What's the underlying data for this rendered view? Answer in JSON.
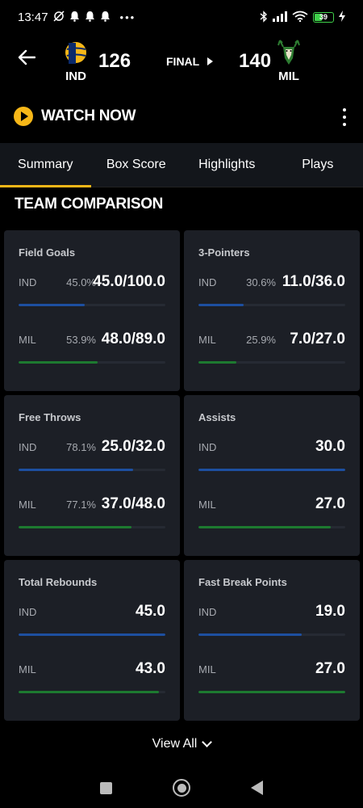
{
  "status_bar": {
    "time": "13:47",
    "left_icons": [
      "alarm-off-icon",
      "bell-icon",
      "bell-icon",
      "bell-icon",
      "more-dots-icon"
    ],
    "right_icons": [
      "bluetooth-icon",
      "signal-icon",
      "wifi-icon"
    ],
    "battery_level": "39",
    "battery_color": "#3fd14a"
  },
  "game": {
    "home_team": "IND",
    "home_score": "126",
    "away_team": "MIL",
    "away_score": "140",
    "status": "FINAL"
  },
  "watch": {
    "label": "WATCH NOW",
    "accent": "#f7b718"
  },
  "tabs": [
    {
      "label": "Summary",
      "active": true
    },
    {
      "label": "Box Score",
      "active": false
    },
    {
      "label": "Highlights",
      "active": false
    },
    {
      "label": "Plays",
      "active": false
    }
  ],
  "section_title": "TEAM COMPARISON",
  "stats": [
    {
      "title": "Field Goals",
      "rows": [
        {
          "team": "IND",
          "pct": "45.0%",
          "value": "45.0/100.0",
          "fill": 0.45,
          "color": "blue"
        },
        {
          "team": "MIL",
          "pct": "53.9%",
          "value": "48.0/89.0",
          "fill": 0.539,
          "color": "green"
        }
      ]
    },
    {
      "title": "3-Pointers",
      "rows": [
        {
          "team": "IND",
          "pct": "30.6%",
          "value": "11.0/36.0",
          "fill": 0.306,
          "color": "blue"
        },
        {
          "team": "MIL",
          "pct": "25.9%",
          "value": "7.0/27.0",
          "fill": 0.259,
          "color": "green"
        }
      ]
    },
    {
      "title": "Free Throws",
      "rows": [
        {
          "team": "IND",
          "pct": "78.1%",
          "value": "25.0/32.0",
          "fill": 0.781,
          "color": "blue"
        },
        {
          "team": "MIL",
          "pct": "77.1%",
          "value": "37.0/48.0",
          "fill": 0.771,
          "color": "green"
        }
      ]
    },
    {
      "title": "Assists",
      "rows": [
        {
          "team": "IND",
          "pct": "",
          "value": "30.0",
          "fill": 1.0,
          "color": "blue"
        },
        {
          "team": "MIL",
          "pct": "",
          "value": "27.0",
          "fill": 0.9,
          "color": "green"
        }
      ]
    },
    {
      "title": "Total Rebounds",
      "rows": [
        {
          "team": "IND",
          "pct": "",
          "value": "45.0",
          "fill": 1.0,
          "color": "blue"
        },
        {
          "team": "MIL",
          "pct": "",
          "value": "43.0",
          "fill": 0.956,
          "color": "green"
        }
      ]
    },
    {
      "title": "Fast Break Points",
      "rows": [
        {
          "team": "IND",
          "pct": "",
          "value": "19.0",
          "fill": 0.704,
          "color": "blue"
        },
        {
          "team": "MIL",
          "pct": "",
          "value": "27.0",
          "fill": 1.0,
          "color": "green"
        }
      ]
    }
  ],
  "view_all": "View All",
  "nav": [
    "recents-icon",
    "home-icon",
    "back-icon"
  ]
}
